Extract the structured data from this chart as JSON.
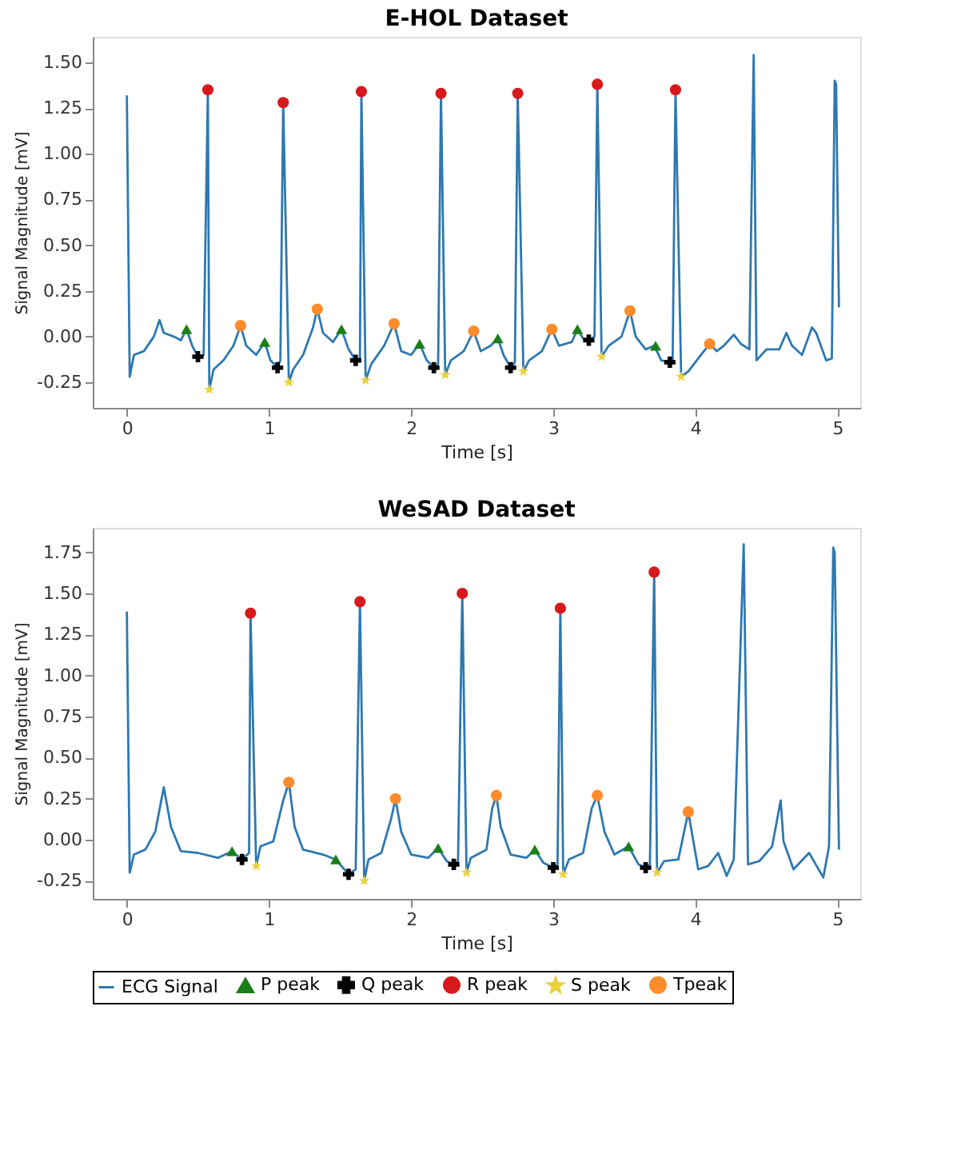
{
  "chart_data": [
    {
      "type": "line",
      "title": "E-HOL Dataset",
      "xlabel": "Time [s]",
      "ylabel": "Signal Magnitude [mV]",
      "xlim": [
        -0.24,
        5.16
      ],
      "ylim": [
        -0.39,
        1.64
      ],
      "xticks": [
        0,
        1,
        2,
        3,
        4,
        5
      ],
      "yticks": [
        {
          "value": -0.25,
          "label": "-0.25"
        },
        {
          "value": 0,
          "label": "0.00"
        },
        {
          "value": 0.25,
          "label": "0.25"
        },
        {
          "value": 0.5,
          "label": "0.50"
        },
        {
          "value": 0.75,
          "label": "0.75"
        },
        {
          "value": 1,
          "label": "1.00"
        },
        {
          "value": 1.25,
          "label": "1.25"
        },
        {
          "value": 1.5,
          "label": "1.50"
        }
      ],
      "grid": false,
      "series": [
        {
          "line_style": "solid",
          "color": "#2e78b0",
          "x": [
            0.0,
            0.02,
            0.05,
            0.12,
            0.19,
            0.23,
            0.26,
            0.33,
            0.38,
            0.42,
            0.46,
            0.5,
            0.54,
            0.57,
            0.58,
            0.61,
            0.68,
            0.75,
            0.8,
            0.84,
            0.91,
            0.97,
            1.01,
            1.06,
            1.08,
            1.1,
            1.14,
            1.17,
            1.24,
            1.31,
            1.34,
            1.38,
            1.45,
            1.51,
            1.56,
            1.61,
            1.64,
            1.65,
            1.68,
            1.72,
            1.81,
            1.88,
            1.93,
            2.0,
            2.06,
            2.11,
            2.16,
            2.19,
            2.21,
            2.24,
            2.28,
            2.37,
            2.44,
            2.49,
            2.56,
            2.61,
            2.65,
            2.7,
            2.73,
            2.75,
            2.79,
            2.83,
            2.92,
            2.99,
            3.04,
            3.13,
            3.17,
            3.21,
            3.25,
            3.29,
            3.31,
            3.34,
            3.39,
            3.48,
            3.54,
            3.58,
            3.65,
            3.71,
            3.76,
            3.82,
            3.84,
            3.86,
            3.9,
            3.95,
            4.04,
            4.1,
            4.15,
            4.2,
            4.27,
            4.32,
            4.38,
            4.41,
            4.43,
            4.5,
            4.59,
            4.64,
            4.68,
            4.75,
            4.82,
            4.85,
            4.92,
            4.96,
            4.98,
            4.99,
            5.01
          ],
          "values": [
            1.32,
            -0.22,
            -0.1,
            -0.08,
            0.0,
            0.09,
            0.02,
            0.0,
            -0.02,
            0.04,
            -0.05,
            -0.11,
            -0.1,
            1.35,
            -0.29,
            -0.18,
            -0.13,
            -0.05,
            0.06,
            -0.05,
            -0.1,
            -0.03,
            -0.13,
            -0.17,
            -0.13,
            1.28,
            -0.25,
            -0.18,
            -0.1,
            0.05,
            0.15,
            0.02,
            -0.03,
            0.04,
            -0.07,
            -0.13,
            -0.12,
            1.34,
            -0.24,
            -0.15,
            -0.05,
            0.07,
            -0.08,
            -0.1,
            -0.04,
            -0.13,
            -0.17,
            -0.15,
            1.33,
            -0.21,
            -0.13,
            -0.08,
            0.03,
            -0.08,
            -0.05,
            -0.01,
            -0.1,
            -0.17,
            -0.14,
            1.33,
            -0.19,
            -0.13,
            -0.08,
            0.04,
            -0.05,
            -0.03,
            0.04,
            -0.01,
            -0.02,
            0.0,
            1.38,
            -0.11,
            -0.05,
            0.0,
            0.14,
            0.0,
            -0.07,
            -0.05,
            -0.13,
            -0.14,
            -0.13,
            1.35,
            -0.22,
            -0.19,
            -0.1,
            -0.04,
            -0.08,
            -0.05,
            0.01,
            -0.04,
            -0.07,
            1.54,
            -0.13,
            -0.07,
            -0.07,
            0.02,
            -0.05,
            -0.1,
            0.05,
            0.02,
            -0.13,
            -0.12,
            1.4,
            1.38,
            0.16
          ]
        },
        {
          "type": "scatter",
          "marker": "triangle",
          "color": "#1a7f1a",
          "x": [
            0.42,
            0.97,
            1.51,
            2.06,
            2.61,
            3.17,
            3.72
          ],
          "values": [
            0.04,
            -0.03,
            0.04,
            -0.04,
            -0.01,
            0.04,
            -0.05
          ]
        },
        {
          "type": "scatter",
          "marker": "cross",
          "color": "#000000",
          "x": [
            0.5,
            1.06,
            1.61,
            2.16,
            2.7,
            3.25,
            3.82
          ],
          "values": [
            -0.11,
            -0.17,
            -0.13,
            -0.17,
            -0.17,
            -0.02,
            -0.14
          ]
        },
        {
          "type": "scatter",
          "marker": "circle",
          "color": "#d7191c",
          "x": [
            0.57,
            1.1,
            1.65,
            2.21,
            2.75,
            3.31,
            3.86
          ],
          "values": [
            1.35,
            1.28,
            1.34,
            1.33,
            1.33,
            1.38,
            1.35
          ]
        },
        {
          "type": "scatter",
          "marker": "star",
          "color": "#e8d23a",
          "x": [
            0.58,
            1.14,
            1.68,
            2.24,
            2.79,
            3.34,
            3.9
          ],
          "values": [
            -0.29,
            -0.25,
            -0.24,
            -0.21,
            -0.19,
            -0.11,
            -0.22
          ]
        },
        {
          "type": "scatter",
          "marker": "circle",
          "color": "#ff8c2a",
          "x": [
            0.8,
            1.34,
            1.88,
            2.44,
            2.99,
            3.54,
            4.1
          ],
          "values": [
            0.06,
            0.15,
            0.07,
            0.03,
            0.04,
            0.14,
            -0.04
          ]
        }
      ]
    },
    {
      "type": "line",
      "title": "WeSAD Dataset",
      "xlabel": "Time [s]",
      "ylabel": "Signal Magnitude [mV]",
      "xlim": [
        -0.24,
        5.16
      ],
      "ylim": [
        -0.36,
        1.9
      ],
      "xticks": [
        0,
        1,
        2,
        3,
        4,
        5
      ],
      "yticks": [
        {
          "value": -0.25,
          "label": "-0.25"
        },
        {
          "value": 0,
          "label": "0.00"
        },
        {
          "value": 0.25,
          "label": "0.25"
        },
        {
          "value": 0.5,
          "label": "0.50"
        },
        {
          "value": 0.75,
          "label": "0.75"
        },
        {
          "value": 1,
          "label": "1.00"
        },
        {
          "value": 1.25,
          "label": "1.25"
        },
        {
          "value": 1.5,
          "label": "1.50"
        },
        {
          "value": 1.75,
          "label": "1.75"
        }
      ],
      "grid": false,
      "legend": "bottom",
      "series": [
        {
          "name": "ECG Signal",
          "line_style": "solid",
          "color": "#2e78b0",
          "x": [
            0.0,
            0.02,
            0.05,
            0.13,
            0.2,
            0.26,
            0.31,
            0.38,
            0.5,
            0.64,
            0.74,
            0.81,
            0.86,
            0.87,
            0.91,
            0.94,
            1.03,
            1.1,
            1.14,
            1.18,
            1.24,
            1.38,
            1.47,
            1.56,
            1.61,
            1.64,
            1.67,
            1.7,
            1.79,
            1.86,
            1.89,
            1.93,
            2.0,
            2.12,
            2.19,
            2.25,
            2.3,
            2.33,
            2.36,
            2.39,
            2.42,
            2.53,
            2.57,
            2.6,
            2.63,
            2.7,
            2.81,
            2.87,
            2.93,
            3.0,
            3.03,
            3.05,
            3.07,
            3.11,
            3.21,
            3.27,
            3.31,
            3.36,
            3.43,
            3.53,
            3.6,
            3.65,
            3.68,
            3.71,
            3.73,
            3.78,
            3.88,
            3.95,
            3.98,
            4.02,
            4.09,
            4.16,
            4.22,
            4.27,
            4.34,
            4.37,
            4.45,
            4.54,
            4.6,
            4.62,
            4.69,
            4.8,
            4.9,
            4.94,
            4.97,
            4.98,
            5.01
          ],
          "values": [
            1.39,
            -0.2,
            -0.09,
            -0.06,
            0.05,
            0.32,
            0.08,
            -0.07,
            -0.08,
            -0.11,
            -0.07,
            -0.12,
            -0.08,
            1.38,
            -0.16,
            -0.04,
            -0.01,
            0.24,
            0.35,
            0.08,
            -0.06,
            -0.09,
            -0.12,
            -0.21,
            -0.18,
            1.45,
            -0.25,
            -0.12,
            -0.08,
            0.13,
            0.25,
            0.05,
            -0.09,
            -0.11,
            -0.05,
            -0.13,
            -0.15,
            -0.13,
            1.5,
            -0.2,
            -0.11,
            -0.06,
            0.19,
            0.27,
            0.08,
            -0.09,
            -0.11,
            -0.06,
            -0.14,
            -0.17,
            -0.15,
            1.41,
            -0.21,
            -0.12,
            -0.08,
            0.19,
            0.27,
            0.05,
            -0.09,
            -0.04,
            -0.15,
            -0.17,
            -0.15,
            1.63,
            -0.2,
            -0.13,
            -0.12,
            0.17,
            0.02,
            -0.18,
            -0.16,
            -0.08,
            -0.22,
            -0.12,
            1.8,
            -0.15,
            -0.13,
            -0.04,
            0.24,
            -0.01,
            -0.18,
            -0.08,
            -0.23,
            -0.04,
            1.78,
            1.75,
            -0.06
          ]
        },
        {
          "name": "P peak",
          "type": "scatter",
          "marker": "triangle",
          "color": "#1a7f1a",
          "x": [
            0.74,
            1.47,
            2.19,
            2.87,
            3.53
          ],
          "values": [
            -0.07,
            -0.12,
            -0.05,
            -0.06,
            -0.04
          ]
        },
        {
          "name": "Q peak",
          "type": "scatter",
          "marker": "cross",
          "color": "#000000",
          "x": [
            0.81,
            1.56,
            2.3,
            3.0,
            3.65
          ],
          "values": [
            -0.12,
            -0.21,
            -0.15,
            -0.17,
            -0.17
          ]
        },
        {
          "name": "R peak",
          "type": "scatter",
          "marker": "circle",
          "color": "#d7191c",
          "x": [
            0.87,
            1.64,
            2.36,
            3.05,
            3.71
          ],
          "values": [
            1.38,
            1.45,
            1.5,
            1.41,
            1.63
          ]
        },
        {
          "name": "S peak",
          "type": "scatter",
          "marker": "star",
          "color": "#e8d23a",
          "x": [
            0.91,
            1.67,
            2.39,
            3.07,
            3.73
          ],
          "values": [
            -0.16,
            -0.25,
            -0.2,
            -0.21,
            -0.2
          ]
        },
        {
          "name": "Tpeak",
          "type": "scatter",
          "marker": "circle",
          "color": "#ff8c2a",
          "x": [
            1.14,
            1.89,
            2.6,
            3.31,
            3.95
          ],
          "values": [
            0.35,
            0.25,
            0.27,
            0.27,
            0.17
          ]
        }
      ]
    }
  ]
}
